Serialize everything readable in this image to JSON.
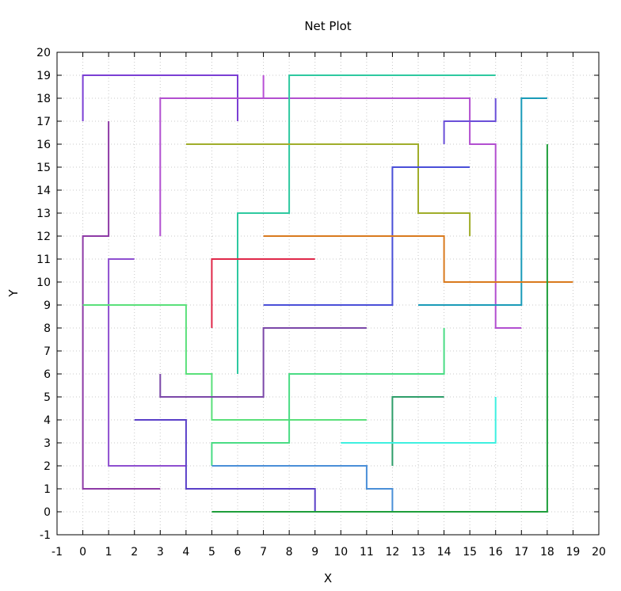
{
  "chart_data": {
    "type": "line",
    "title": "Net Plot",
    "xlabel": "X",
    "ylabel": "Y",
    "xlim": [
      -1,
      20
    ],
    "ylim": [
      -1,
      20
    ],
    "xticks": [
      -1,
      0,
      1,
      2,
      3,
      4,
      5,
      6,
      7,
      8,
      9,
      10,
      11,
      12,
      13,
      14,
      15,
      16,
      17,
      18,
      19,
      20
    ],
    "yticks": [
      -1,
      0,
      1,
      2,
      3,
      4,
      5,
      6,
      7,
      8,
      9,
      10,
      11,
      12,
      13,
      14,
      15,
      16,
      17,
      18,
      19,
      20
    ],
    "grid": true,
    "series": [
      {
        "color": "#7b3fd4",
        "points": [
          [
            0,
            17
          ],
          [
            0,
            19
          ],
          [
            6,
            19
          ],
          [
            6,
            17
          ]
        ]
      },
      {
        "color": "#b84fd6",
        "points": [
          [
            7,
            19
          ],
          [
            7,
            18
          ]
        ]
      },
      {
        "color": "#b24fd0",
        "points": [
          [
            3,
            12
          ],
          [
            3,
            18
          ],
          [
            15,
            18
          ],
          [
            15,
            16
          ],
          [
            16,
            16
          ],
          [
            16,
            8
          ],
          [
            17,
            8
          ]
        ]
      },
      {
        "color": "#2ec9a0",
        "points": [
          [
            16,
            19
          ],
          [
            8,
            19
          ],
          [
            8,
            13
          ],
          [
            6,
            13
          ],
          [
            6,
            6
          ]
        ]
      },
      {
        "color": "#6a4fd8",
        "points": [
          [
            14,
            16
          ],
          [
            14,
            17
          ],
          [
            16,
            17
          ],
          [
            16,
            18
          ]
        ]
      },
      {
        "color": "#1a9bb8",
        "points": [
          [
            13,
            9
          ],
          [
            17,
            9
          ],
          [
            17,
            18
          ],
          [
            18,
            18
          ]
        ]
      },
      {
        "color": "#a0ad2a",
        "points": [
          [
            4,
            16
          ],
          [
            13,
            16
          ],
          [
            13,
            13
          ],
          [
            15,
            13
          ],
          [
            15,
            12
          ]
        ]
      },
      {
        "color": "#8e3aa6",
        "points": [
          [
            1,
            17
          ],
          [
            1,
            12
          ],
          [
            0,
            12
          ],
          [
            0,
            1
          ],
          [
            3,
            1
          ]
        ]
      },
      {
        "color": "#4a4fd8",
        "points": [
          [
            15,
            15
          ],
          [
            12,
            15
          ],
          [
            12,
            9
          ],
          [
            7,
            9
          ]
        ]
      },
      {
        "color": "#d97a1e",
        "points": [
          [
            7,
            12
          ],
          [
            14,
            12
          ],
          [
            14,
            10
          ],
          [
            19,
            10
          ]
        ]
      },
      {
        "color": "#e0284a",
        "points": [
          [
            9,
            11
          ],
          [
            5,
            11
          ],
          [
            5,
            8
          ]
        ]
      },
      {
        "color": "#8e4fd0",
        "points": [
          [
            2,
            11
          ],
          [
            1,
            11
          ],
          [
            1,
            2
          ],
          [
            4,
            2
          ]
        ]
      },
      {
        "color": "#5ae07a",
        "points": [
          [
            0,
            9
          ],
          [
            4,
            9
          ],
          [
            4,
            6
          ],
          [
            5,
            6
          ],
          [
            5,
            4
          ],
          [
            11,
            4
          ]
        ]
      },
      {
        "color": "#7b47a8",
        "points": [
          [
            11,
            8
          ],
          [
            7,
            8
          ],
          [
            7,
            5
          ],
          [
            3,
            5
          ],
          [
            3,
            6
          ]
        ]
      },
      {
        "color": "#4adc84",
        "points": [
          [
            14,
            8
          ],
          [
            14,
            6
          ],
          [
            8,
            6
          ],
          [
            8,
            3
          ],
          [
            5,
            3
          ],
          [
            5,
            2
          ]
        ]
      },
      {
        "color": "#2e9e6a",
        "points": [
          [
            12,
            2
          ],
          [
            12,
            5
          ],
          [
            14,
            5
          ]
        ]
      },
      {
        "color": "#3ef0e0",
        "points": [
          [
            16,
            5
          ],
          [
            16,
            3
          ],
          [
            10,
            3
          ]
        ]
      },
      {
        "color": "#5a40c8",
        "points": [
          [
            2,
            4
          ],
          [
            4,
            4
          ],
          [
            4,
            1
          ],
          [
            9,
            1
          ],
          [
            9,
            0
          ]
        ]
      },
      {
        "color": "#4a8fd8",
        "points": [
          [
            5,
            2
          ],
          [
            11,
            2
          ],
          [
            11,
            1
          ],
          [
            12,
            1
          ],
          [
            12,
            0
          ]
        ]
      },
      {
        "color": "#1e9e3a",
        "points": [
          [
            5,
            0
          ],
          [
            18,
            0
          ],
          [
            18,
            16
          ]
        ]
      }
    ]
  }
}
